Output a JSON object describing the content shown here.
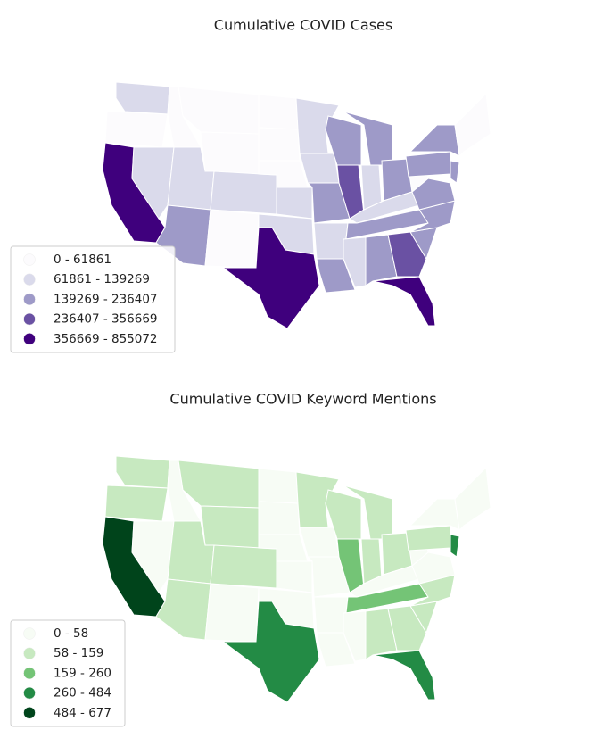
{
  "maps": [
    {
      "title": "Cumulative COVID Cases",
      "legend": [
        {
          "label": "0 - 61861",
          "color": "#fcfbfd"
        },
        {
          "label": "61861 - 139269",
          "color": "#dadaeb"
        },
        {
          "label": "139269 - 236407",
          "color": "#9e9ac8"
        },
        {
          "label": "236407 - 356669",
          "color": "#6a51a3"
        },
        {
          "label": "356669 - 855072",
          "color": "#3f007d"
        }
      ],
      "region_classes": [
        1,
        0,
        4,
        0,
        1,
        0,
        0,
        1,
        1,
        2,
        0,
        0,
        0,
        0,
        1,
        1,
        4,
        1,
        1,
        2,
        1,
        2,
        2,
        3,
        2,
        1,
        2,
        1,
        2,
        1,
        2,
        3,
        4,
        2,
        2,
        2,
        0,
        2,
        2,
        0,
        2
      ]
    },
    {
      "title": "Cumulative COVID Keyword Mentions",
      "legend": [
        {
          "label": "0 - 58",
          "color": "#f7fcf5"
        },
        {
          "label": "58 - 159",
          "color": "#c7e9c0"
        },
        {
          "label": "159 - 260",
          "color": "#74c476"
        },
        {
          "label": "260 - 484",
          "color": "#238b45"
        },
        {
          "label": "484 - 677",
          "color": "#00441b"
        }
      ],
      "region_classes": [
        1,
        1,
        4,
        0,
        0,
        1,
        1,
        1,
        1,
        1,
        0,
        0,
        0,
        0,
        0,
        0,
        3,
        1,
        0,
        0,
        0,
        0,
        1,
        2,
        1,
        1,
        1,
        0,
        2,
        0,
        1,
        1,
        3,
        1,
        1,
        0,
        0,
        1,
        0,
        0,
        3
      ]
    }
  ]
}
